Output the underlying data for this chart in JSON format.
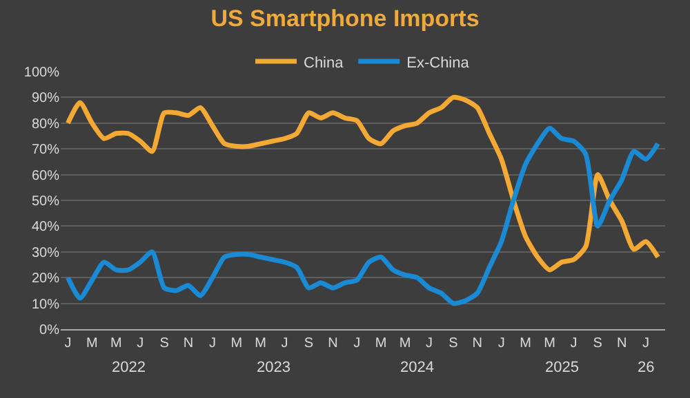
{
  "chart_data": {
    "type": "line",
    "title": "US Smartphone Imports",
    "categories": [
      "J",
      null,
      "M",
      null,
      "M",
      null,
      "J",
      null,
      "S",
      null,
      "N",
      null,
      "J",
      null,
      "M",
      null,
      "M",
      null,
      "J",
      null,
      "S",
      null,
      "N",
      null,
      "J",
      null,
      "M",
      null,
      "M",
      null,
      "J",
      null,
      "S",
      null,
      "N",
      null,
      "J",
      null,
      "M",
      null,
      "M",
      null,
      "J",
      null,
      "S",
      null,
      "N",
      null,
      "J",
      null
    ],
    "series": [
      {
        "name": "China",
        "color": "#f4a935",
        "values": [
          80,
          88,
          80,
          74,
          76,
          76,
          73,
          69,
          84,
          84,
          83,
          86,
          79,
          72,
          71,
          71,
          72,
          73,
          74,
          76,
          84,
          82,
          84,
          82,
          81,
          74,
          72,
          77,
          79,
          80,
          84,
          86,
          90,
          89,
          86,
          76,
          66,
          50,
          36,
          28,
          23,
          26,
          27,
          32,
          60,
          50,
          42,
          31,
          34,
          28
        ]
      },
      {
        "name": "Ex-China",
        "color": "#1a8ad4",
        "values": [
          20,
          12,
          19,
          26,
          23,
          23,
          26,
          30,
          16,
          15,
          17,
          13,
          20,
          28,
          29,
          29,
          28,
          27,
          26,
          24,
          16,
          18,
          16,
          18,
          19,
          26,
          28,
          23,
          21,
          20,
          16,
          14,
          10,
          11,
          14,
          24,
          34,
          50,
          64,
          72,
          78,
          74,
          73,
          68,
          40,
          50,
          58,
          69,
          66,
          72
        ]
      }
    ],
    "annotations": [
      "2022",
      "2023",
      "2024",
      "2025",
      "26"
    ],
    "ylim": [
      0,
      100
    ],
    "yticks": [
      {
        "value": 0,
        "label": "0%"
      },
      {
        "value": 10,
        "label": "10%"
      },
      {
        "value": 20,
        "label": "20%"
      },
      {
        "value": 30,
        "label": "30%"
      },
      {
        "value": 40,
        "label": "40%"
      },
      {
        "value": 50,
        "label": "50%"
      },
      {
        "value": 60,
        "label": "60%"
      },
      {
        "value": 70,
        "label": "70%"
      },
      {
        "value": 80,
        "label": "80%"
      },
      {
        "value": 90,
        "label": "90%"
      },
      {
        "value": 100,
        "label": "100%"
      }
    ],
    "grid": "y",
    "legend": "top",
    "marker": "none",
    "line_style": "solid"
  }
}
